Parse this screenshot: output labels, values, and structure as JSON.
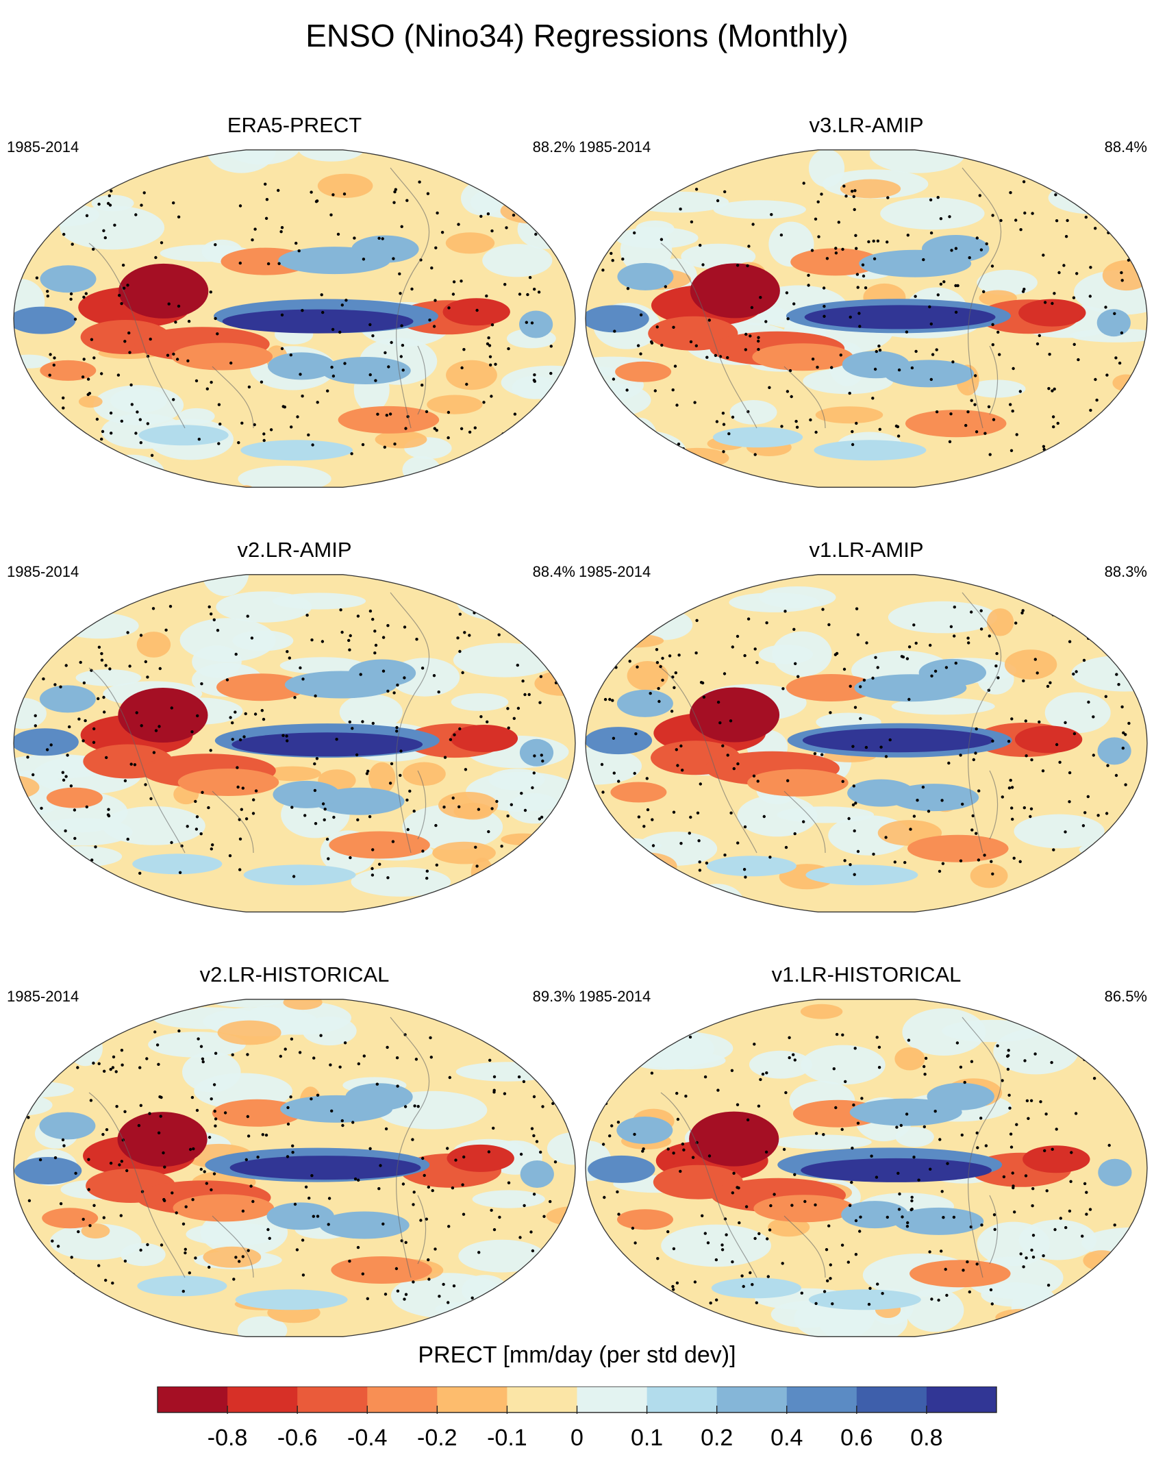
{
  "figure": {
    "title": "ENSO (Nino34) Regressions (Monthly)"
  },
  "panels": [
    {
      "title": "ERA5-PRECT",
      "years": "1985-2014",
      "pct": "88.2%"
    },
    {
      "title": "v3.LR-AMIP",
      "years": "1985-2014",
      "pct": "88.4%"
    },
    {
      "title": "v2.LR-AMIP",
      "years": "1985-2014",
      "pct": "88.4%"
    },
    {
      "title": "v1.LR-AMIP",
      "years": "1985-2014",
      "pct": "88.3%"
    },
    {
      "title": "v2.LR-HISTORICAL",
      "years": "1985-2014",
      "pct": "89.3%"
    },
    {
      "title": "v1.LR-HISTORICAL",
      "years": "1985-2014",
      "pct": "86.5%"
    }
  ],
  "colorbar": {
    "label": "PRECT [mm/day (per std dev)]",
    "tick_labels": [
      "-0.8",
      "-0.6",
      "-0.4",
      "-0.2",
      "-0.1",
      "0",
      "0.1",
      "0.2",
      "0.4",
      "0.6",
      "0.8"
    ],
    "colors": [
      "#a50f24",
      "#d73027",
      "#ea5b3a",
      "#f88f54",
      "#fdbc6d",
      "#fbe5a6",
      "#e3f3f1",
      "#b2dcec",
      "#85b6d8",
      "#5b8bc4",
      "#3e5fab",
      "#313695"
    ]
  },
  "chart_data": {
    "type": "heatmap",
    "title": "ENSO (Nino34) Regressions (Monthly)",
    "projection": "Robinson, Pacific-centered",
    "variable": "PRECT",
    "units": "mm/day (per std dev)",
    "levels": [
      -0.8,
      -0.6,
      -0.4,
      -0.2,
      -0.1,
      0,
      0.1,
      0.2,
      0.4,
      0.6,
      0.8
    ],
    "stippling": "statistically significant regions",
    "series": [
      {
        "name": "ERA5-PRECT",
        "period": "1985-2014",
        "annotation": "88.2%"
      },
      {
        "name": "v3.LR-AMIP",
        "period": "1985-2014",
        "annotation": "88.4%"
      },
      {
        "name": "v2.LR-AMIP",
        "period": "1985-2014",
        "annotation": "88.4%"
      },
      {
        "name": "v1.LR-AMIP",
        "period": "1985-2014",
        "annotation": "88.3%"
      },
      {
        "name": "v2.LR-HISTORICAL",
        "period": "1985-2014",
        "annotation": "89.3%"
      },
      {
        "name": "v1.LR-HISTORICAL",
        "period": "1985-2014",
        "annotation": "86.5%"
      }
    ]
  }
}
